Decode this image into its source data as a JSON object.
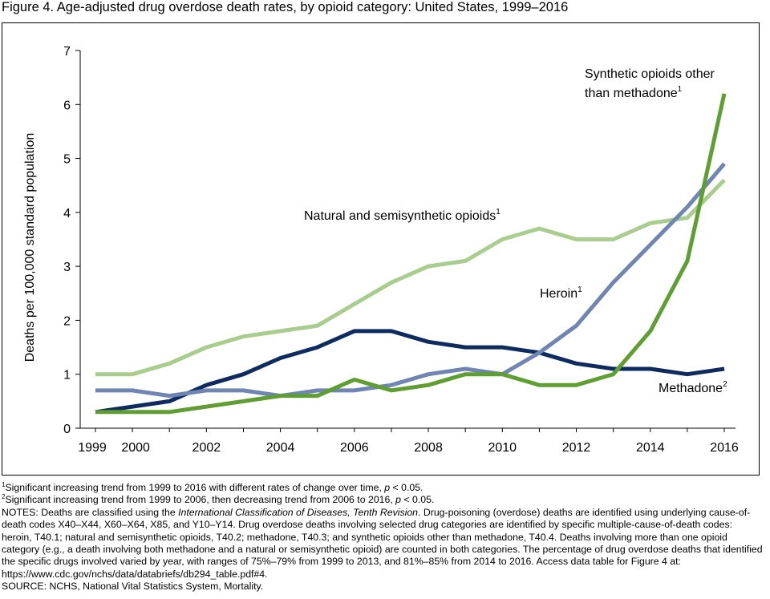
{
  "title": "Figure 4. Age-adjusted drug overdose death rates, by opioid category: United States, 1999–2016",
  "chart_data": {
    "type": "line",
    "title": "Figure 4. Age-adjusted drug overdose death rates, by opioid category: United States, 1999–2016",
    "xlabel": "",
    "ylabel": "Deaths per 100,000 standard population",
    "x": [
      1999,
      2000,
      2001,
      2002,
      2003,
      2004,
      2005,
      2006,
      2007,
      2008,
      2009,
      2010,
      2011,
      2012,
      2013,
      2014,
      2015,
      2016
    ],
    "x_tick_labels": [
      "1999",
      "2000",
      "2002",
      "2004",
      "2006",
      "2008",
      "2010",
      "2012",
      "2014",
      "2016"
    ],
    "x_tick_values": [
      1999,
      2000,
      2002,
      2004,
      2006,
      2008,
      2010,
      2012,
      2014,
      2016
    ],
    "ylim": [
      0,
      7
    ],
    "y_ticks": [
      0,
      1,
      2,
      3,
      4,
      5,
      6,
      7
    ],
    "grid": false,
    "legend": "inline labels",
    "series": [
      {
        "name": "Natural and semisynthetic opioids",
        "footnote": "1",
        "color": "#a9cd8e",
        "values": [
          1.0,
          1.0,
          1.2,
          1.5,
          1.7,
          1.8,
          1.9,
          2.3,
          2.7,
          3.0,
          3.1,
          3.5,
          3.7,
          3.5,
          3.5,
          3.8,
          3.9,
          4.6
        ]
      },
      {
        "name": "Methadone",
        "footnote": "2",
        "color": "#0d2b5e",
        "values": [
          0.3,
          0.4,
          0.5,
          0.8,
          1.0,
          1.3,
          1.5,
          1.8,
          1.8,
          1.6,
          1.5,
          1.5,
          1.4,
          1.2,
          1.1,
          1.1,
          1.0,
          1.1
        ]
      },
      {
        "name": "Heroin",
        "footnote": "1",
        "color": "#6f86b3",
        "values": [
          0.7,
          0.7,
          0.6,
          0.7,
          0.7,
          0.6,
          0.7,
          0.7,
          0.8,
          1.0,
          1.1,
          1.0,
          1.4,
          1.9,
          2.7,
          3.4,
          4.1,
          4.9
        ]
      },
      {
        "name": "Synthetic opioids other than methadone",
        "name_lines": [
          "Synthetic opioids other",
          "than methadone"
        ],
        "footnote": "1",
        "color": "#5e9e32",
        "values": [
          0.3,
          0.3,
          0.3,
          0.4,
          0.5,
          0.6,
          0.6,
          0.9,
          0.7,
          0.8,
          1.0,
          1.0,
          0.8,
          0.8,
          1.0,
          1.8,
          3.1,
          6.2
        ]
      }
    ]
  },
  "notes": {
    "fn1_mark": "1",
    "fn1_text": "Significant increasing trend from 1999 to 2016 with different rates of change over time, ",
    "fn1_p": "p",
    "fn1_end": " < 0.05.",
    "fn2_mark": "2",
    "fn2_text": "Significant increasing trend from 1999 to 2006, then decreasing trend from 2006 to 2016, ",
    "fn2_p": "p",
    "fn2_end": " < 0.05.",
    "notes_start": "NOTES: Deaths are classified using the ",
    "notes_icd": "International Classification of Diseases, Tenth Revision",
    "notes_rest": ". Drug-poisoning (overdose) deaths are identified using underlying cause-of-death codes X40–X44, X60–X64, X85, and Y10–Y14. Drug overdose deaths involving selected drug categories are identified by specific multiple-cause-of-death codes:  heroin, T40.1; natural and semisynthetic opioids, T40.2;  methadone, T40.3; and synthetic opioids other than methadone, T40.4. Deaths involving more than one opioid category (e.g., a death involving both methadone and a natural or semisynthetic opioid) are counted in both categories. The percentage of drug overdose deaths that identified the specific drugs involved varied by year, with ranges of 75%–79% from 1999 to 2013, and 81%–85% from 2014 to 2016. Access data table for Figure 4 at: https://www.cdc.gov/nchs/data/databriefs/db294_table.pdf#4.",
    "source": "SOURCE: NCHS, National Vital Statistics System, Mortality."
  }
}
